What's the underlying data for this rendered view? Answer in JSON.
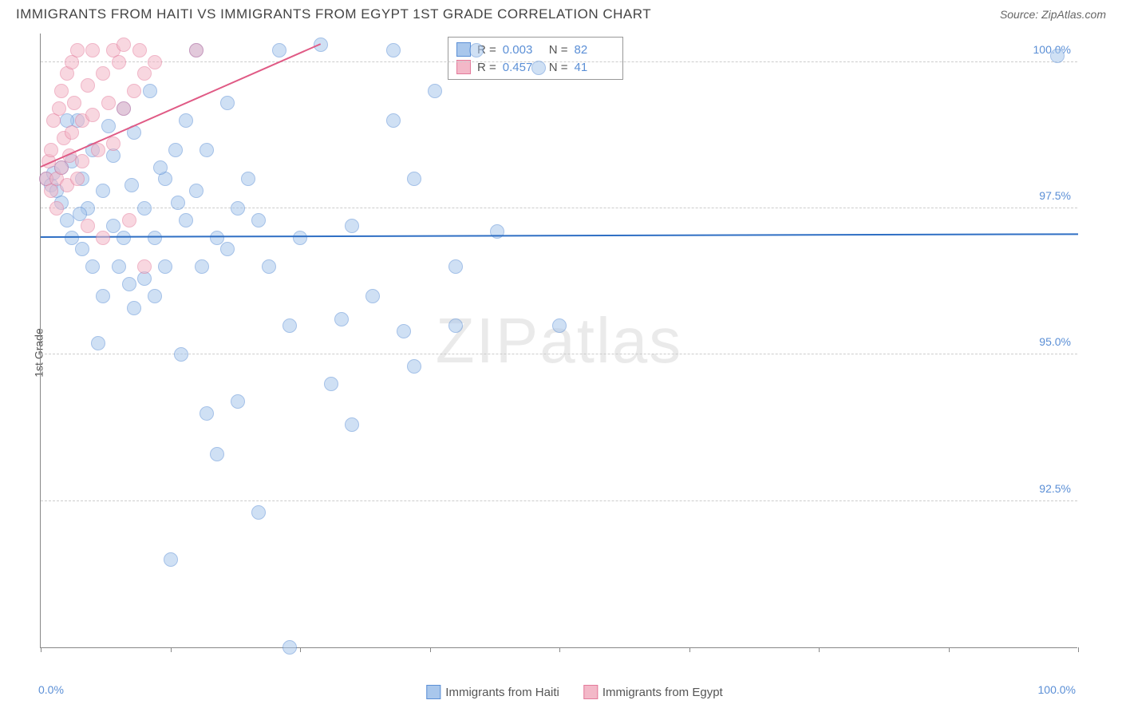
{
  "title": "IMMIGRANTS FROM HAITI VS IMMIGRANTS FROM EGYPT 1ST GRADE CORRELATION CHART",
  "source_label": "Source: ",
  "source_value": "ZipAtlas.com",
  "y_axis_title": "1st Grade",
  "watermark_a": "ZIP",
  "watermark_b": "atlas",
  "chart": {
    "type": "scatter",
    "xlim": [
      0,
      100
    ],
    "ylim": [
      90,
      100.5
    ],
    "x_tick_positions": [
      0,
      12.5,
      25,
      37.5,
      50,
      62.5,
      75,
      87.5,
      100
    ],
    "x_min_label": "0.0%",
    "x_max_label": "100.0%",
    "y_ticks": [
      {
        "v": 92.5,
        "label": "92.5%"
      },
      {
        "v": 95.0,
        "label": "95.0%"
      },
      {
        "v": 97.5,
        "label": "97.5%"
      },
      {
        "v": 100.0,
        "label": "100.0%"
      }
    ],
    "grid_color": "#cccccc",
    "background_color": "#ffffff",
    "marker_radius": 9,
    "marker_opacity": 0.55,
    "series": [
      {
        "name": "Immigrants from Haiti",
        "fill_color": "#a9c7ec",
        "stroke_color": "#5b8fd6",
        "R": "0.003",
        "N": "82",
        "trend": {
          "x1": 0,
          "y1": 97.0,
          "x2": 100,
          "y2": 97.05,
          "color": "#2f6fc4",
          "width": 2
        },
        "points": [
          [
            0.5,
            98.0
          ],
          [
            1,
            97.9
          ],
          [
            1.2,
            98.1
          ],
          [
            1.5,
            97.8
          ],
          [
            2,
            98.2
          ],
          [
            2,
            97.6
          ],
          [
            2.5,
            97.3
          ],
          [
            3,
            98.3
          ],
          [
            3,
            97.0
          ],
          [
            3.5,
            99.0
          ],
          [
            4,
            98.0
          ],
          [
            4,
            96.8
          ],
          [
            4.5,
            97.5
          ],
          [
            5,
            98.5
          ],
          [
            5,
            96.5
          ],
          [
            5.5,
            95.2
          ],
          [
            6,
            97.8
          ],
          [
            6,
            96.0
          ],
          [
            7,
            98.4
          ],
          [
            7,
            97.2
          ],
          [
            7.5,
            96.5
          ],
          [
            8,
            99.2
          ],
          [
            8,
            97.0
          ],
          [
            8.5,
            96.2
          ],
          [
            9,
            98.8
          ],
          [
            9,
            95.8
          ],
          [
            10,
            97.5
          ],
          [
            10,
            96.3
          ],
          [
            10.5,
            99.5
          ],
          [
            11,
            97.0
          ],
          [
            11,
            96.0
          ],
          [
            12,
            98.0
          ],
          [
            12,
            96.5
          ],
          [
            12.5,
            91.5
          ],
          [
            13,
            98.5
          ],
          [
            13.5,
            95.0
          ],
          [
            14,
            97.3
          ],
          [
            14,
            99.0
          ],
          [
            15,
            100.2
          ],
          [
            15,
            97.8
          ],
          [
            15.5,
            96.5
          ],
          [
            16,
            94.0
          ],
          [
            16,
            98.5
          ],
          [
            17,
            97.0
          ],
          [
            17,
            93.3
          ],
          [
            18,
            99.3
          ],
          [
            18,
            96.8
          ],
          [
            19,
            97.5
          ],
          [
            19,
            94.2
          ],
          [
            20,
            98.0
          ],
          [
            21,
            97.3
          ],
          [
            21,
            92.3
          ],
          [
            22,
            96.5
          ],
          [
            23,
            100.2
          ],
          [
            24,
            90.0
          ],
          [
            24,
            95.5
          ],
          [
            25,
            97.0
          ],
          [
            27,
            100.3
          ],
          [
            28,
            94.5
          ],
          [
            29,
            95.6
          ],
          [
            30,
            97.2
          ],
          [
            30,
            93.8
          ],
          [
            32,
            96.0
          ],
          [
            34,
            99.0
          ],
          [
            34,
            100.2
          ],
          [
            35,
            95.4
          ],
          [
            36,
            98.0
          ],
          [
            36,
            94.8
          ],
          [
            38,
            99.5
          ],
          [
            40,
            96.5
          ],
          [
            40,
            95.5
          ],
          [
            42,
            100.2
          ],
          [
            44,
            97.1
          ],
          [
            48,
            99.9
          ],
          [
            50,
            95.5
          ],
          [
            98,
            100.1
          ],
          [
            2.5,
            99.0
          ],
          [
            3.8,
            97.4
          ],
          [
            6.5,
            98.9
          ],
          [
            8.8,
            97.9
          ],
          [
            11.5,
            98.2
          ],
          [
            13.2,
            97.6
          ]
        ]
      },
      {
        "name": "Immigrants from Egypt",
        "fill_color": "#f3b8c8",
        "stroke_color": "#e47a9b",
        "R": "0.457",
        "N": "41",
        "trend": {
          "x1": 0,
          "y1": 98.2,
          "x2": 27,
          "y2": 100.3,
          "color": "#e05a85",
          "width": 2
        },
        "points": [
          [
            0.5,
            98.0
          ],
          [
            0.8,
            98.3
          ],
          [
            1,
            97.8
          ],
          [
            1,
            98.5
          ],
          [
            1.2,
            99.0
          ],
          [
            1.5,
            98.0
          ],
          [
            1.5,
            97.5
          ],
          [
            1.8,
            99.2
          ],
          [
            2,
            98.2
          ],
          [
            2,
            99.5
          ],
          [
            2.2,
            98.7
          ],
          [
            2.5,
            99.8
          ],
          [
            2.5,
            97.9
          ],
          [
            2.8,
            98.4
          ],
          [
            3,
            100.0
          ],
          [
            3,
            98.8
          ],
          [
            3.2,
            99.3
          ],
          [
            3.5,
            98.0
          ],
          [
            3.5,
            100.2
          ],
          [
            4,
            99.0
          ],
          [
            4,
            98.3
          ],
          [
            4.5,
            99.6
          ],
          [
            4.5,
            97.2
          ],
          [
            5,
            99.1
          ],
          [
            5,
            100.2
          ],
          [
            5.5,
            98.5
          ],
          [
            6,
            99.8
          ],
          [
            6,
            97.0
          ],
          [
            6.5,
            99.3
          ],
          [
            7,
            100.2
          ],
          [
            7,
            98.6
          ],
          [
            7.5,
            100.0
          ],
          [
            8,
            99.2
          ],
          [
            8,
            100.3
          ],
          [
            8.5,
            97.3
          ],
          [
            9,
            99.5
          ],
          [
            9.5,
            100.2
          ],
          [
            10,
            99.8
          ],
          [
            10,
            96.5
          ],
          [
            11,
            100.0
          ],
          [
            15,
            100.2
          ]
        ]
      }
    ]
  }
}
